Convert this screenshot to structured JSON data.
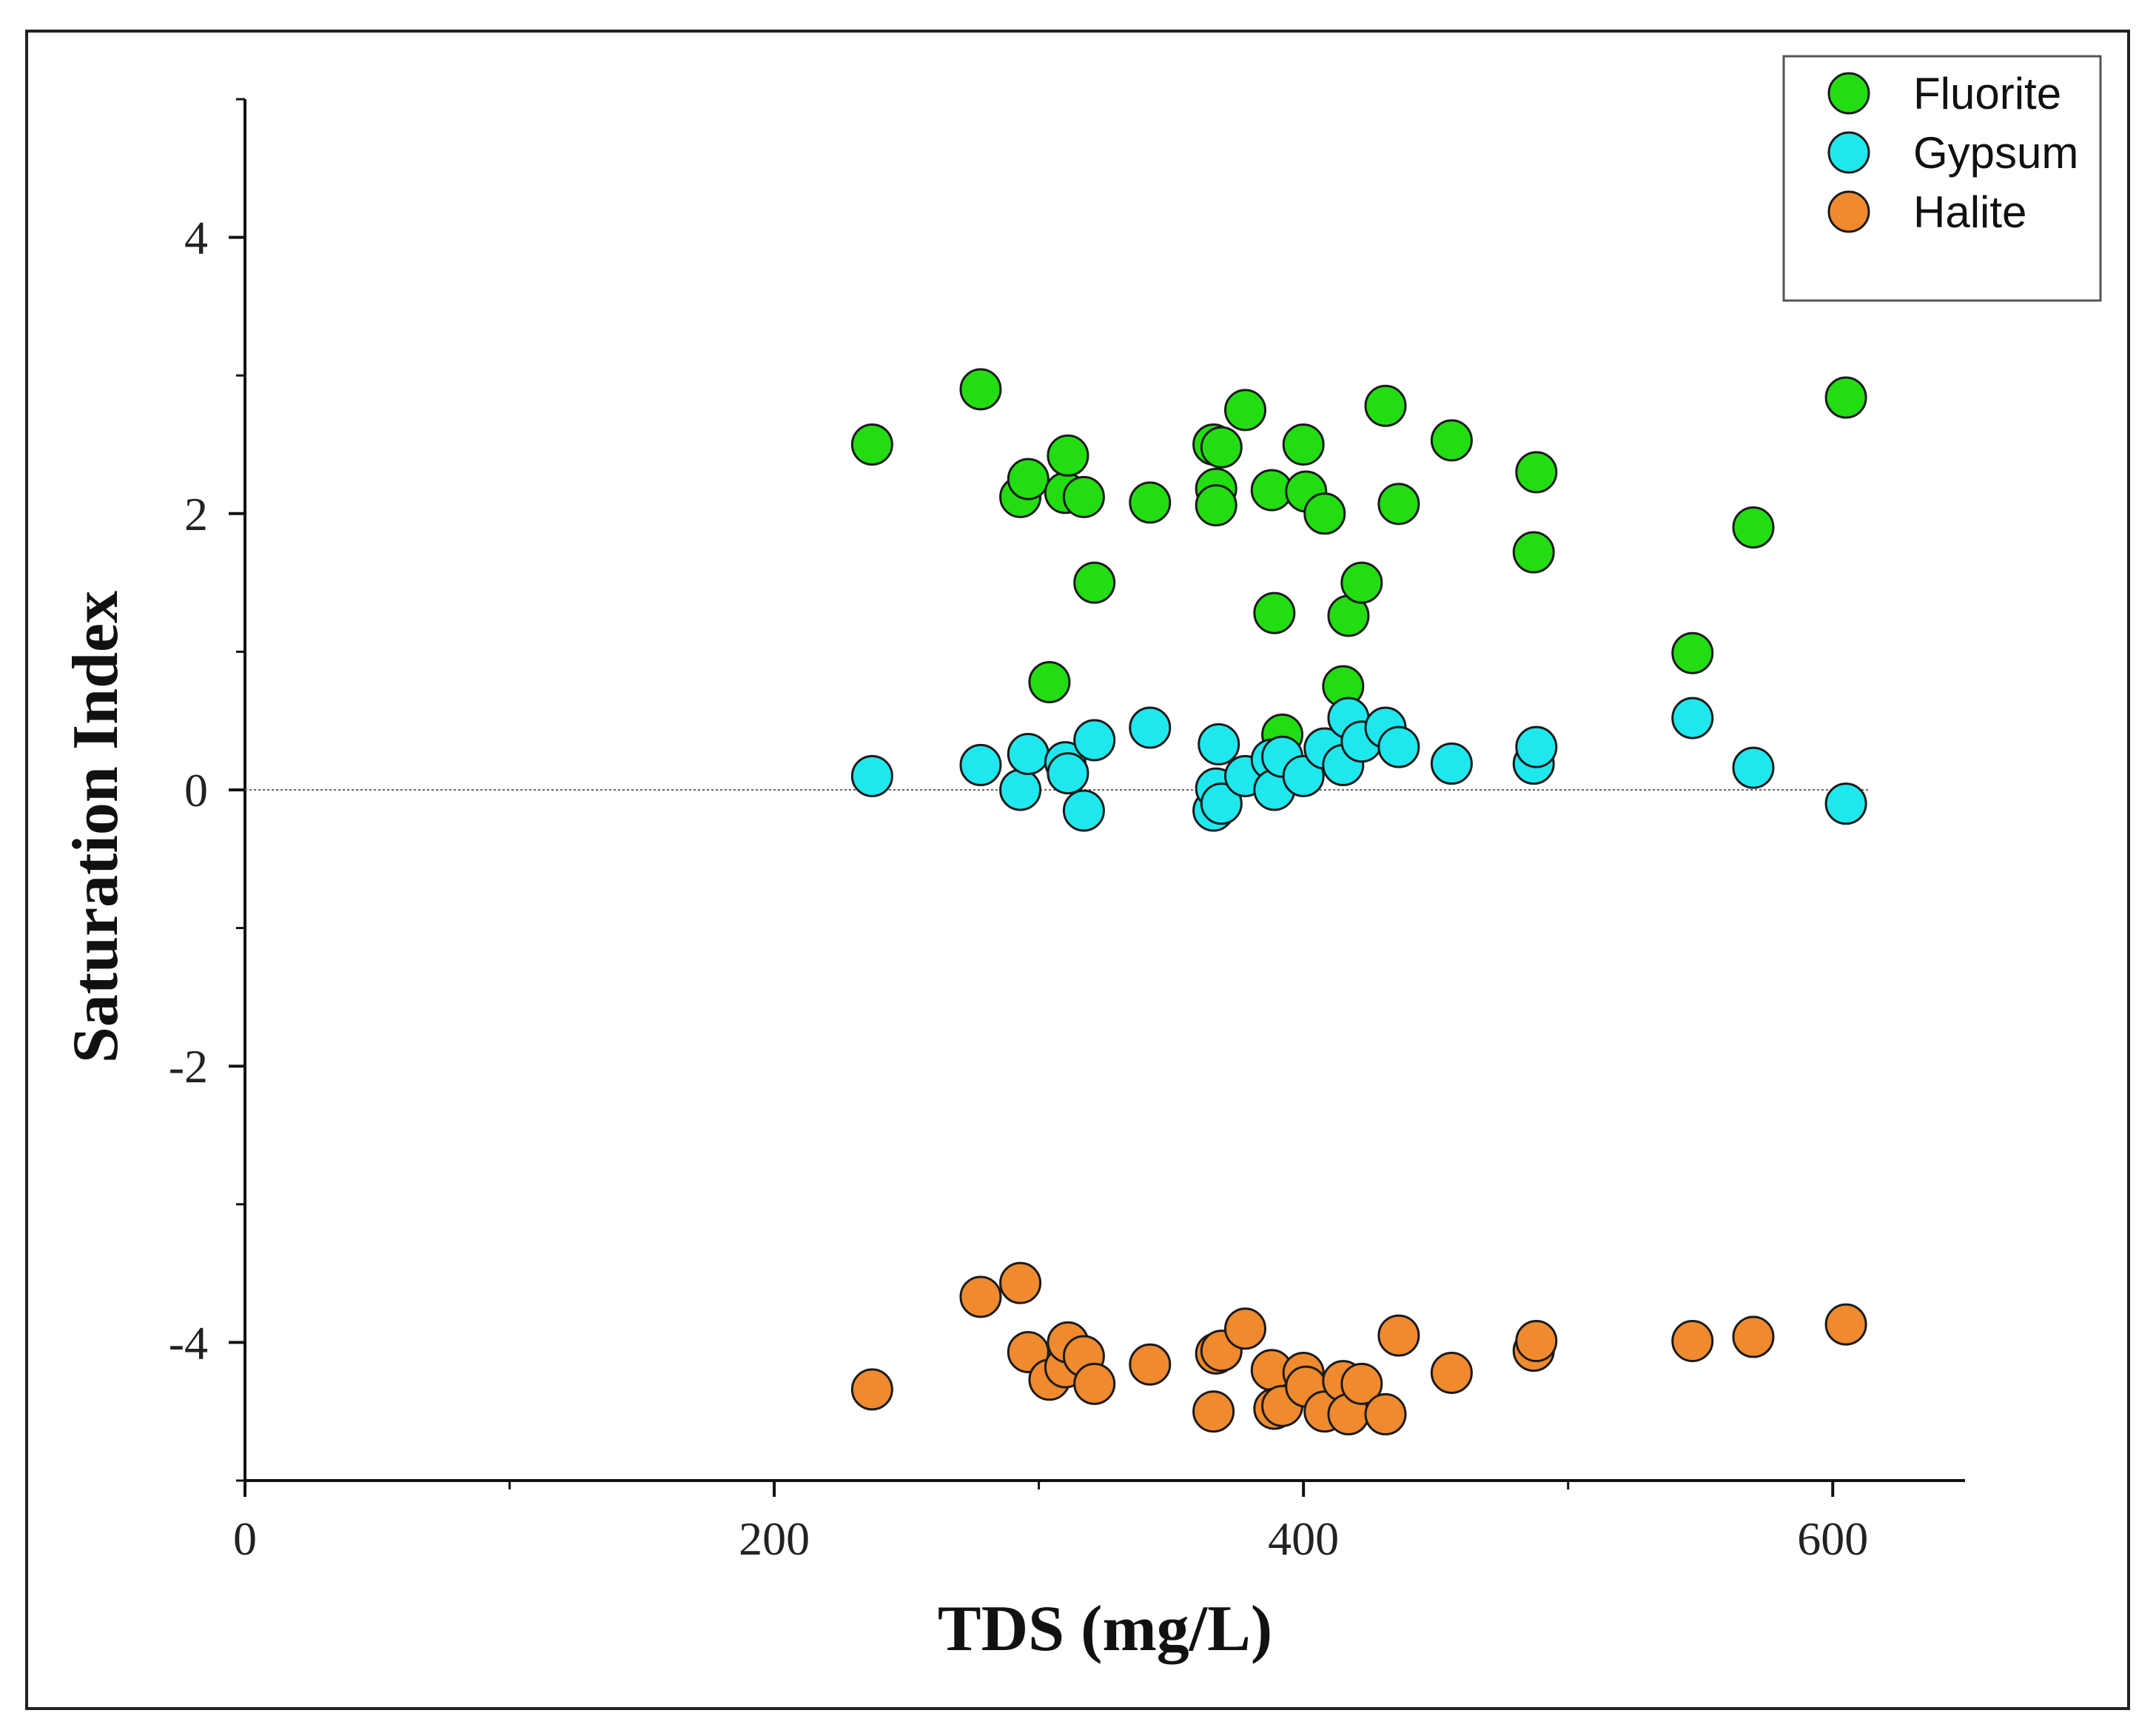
{
  "chart_data": {
    "type": "scatter",
    "title": "",
    "xlabel": "TDS (mg/L)",
    "ylabel": "Saturation Index",
    "xlim": [
      0,
      650
    ],
    "ylim": [
      -5,
      5
    ],
    "x_ticks": [
      0,
      200,
      400,
      600
    ],
    "x_minor_ticks": [
      100,
      300,
      500
    ],
    "y_ticks": [
      -4,
      -2,
      0,
      2,
      4
    ],
    "y_minor_ticks": [
      -5,
      -3,
      -1,
      1,
      3,
      5
    ],
    "x_tick_labels": [
      "0",
      "200",
      "400",
      "600"
    ],
    "y_tick_labels": [
      "-4",
      "-2",
      "0",
      "2",
      "4"
    ],
    "reference_line_y": 0,
    "grid": false,
    "legend_position": "top-right",
    "series": [
      {
        "name": "Fluorite",
        "color": "#22dd11",
        "points": [
          [
            237,
            2.5
          ],
          [
            278,
            2.9
          ],
          [
            293,
            2.12
          ],
          [
            296,
            2.25
          ],
          [
            310,
            2.15
          ],
          [
            311,
            2.42
          ],
          [
            317,
            2.12
          ],
          [
            321,
            1.5
          ],
          [
            304,
            0.78
          ],
          [
            342,
            2.08
          ],
          [
            366,
            2.5
          ],
          [
            367,
            2.18
          ],
          [
            367,
            2.06
          ],
          [
            369,
            2.48
          ],
          [
            378,
            2.75
          ],
          [
            388,
            2.17
          ],
          [
            389,
            1.28
          ],
          [
            392,
            0.4
          ],
          [
            400,
            2.5
          ],
          [
            401,
            2.16
          ],
          [
            408,
            2.0
          ],
          [
            415,
            0.75
          ],
          [
            417,
            1.26
          ],
          [
            422,
            1.5
          ],
          [
            431,
            2.78
          ],
          [
            436,
            2.07
          ],
          [
            456,
            2.53
          ],
          [
            487,
            1.72
          ],
          [
            488,
            2.3
          ],
          [
            547,
            0.99
          ],
          [
            570,
            1.9
          ],
          [
            605,
            2.84
          ]
        ]
      },
      {
        "name": "Gypsum",
        "color": "#1ee8ee",
        "points": [
          [
            237,
            0.1
          ],
          [
            278,
            0.18
          ],
          [
            293,
            0.0
          ],
          [
            296,
            0.26
          ],
          [
            310,
            0.2
          ],
          [
            311,
            0.12
          ],
          [
            317,
            -0.15
          ],
          [
            321,
            0.36
          ],
          [
            342,
            0.45
          ],
          [
            366,
            -0.15
          ],
          [
            367,
            0.01
          ],
          [
            368,
            0.33
          ],
          [
            369,
            -0.1
          ],
          [
            378,
            0.1
          ],
          [
            388,
            0.22
          ],
          [
            389,
            0.0
          ],
          [
            392,
            0.24
          ],
          [
            400,
            0.1
          ],
          [
            408,
            0.3
          ],
          [
            415,
            0.18
          ],
          [
            417,
            0.52
          ],
          [
            422,
            0.35
          ],
          [
            431,
            0.45
          ],
          [
            436,
            0.31
          ],
          [
            456,
            0.19
          ],
          [
            487,
            0.19
          ],
          [
            488,
            0.31
          ],
          [
            547,
            0.52
          ],
          [
            570,
            0.16
          ],
          [
            605,
            -0.1
          ]
        ]
      },
      {
        "name": "Halite",
        "color": "#f08a2e",
        "points": [
          [
            237,
            -4.34
          ],
          [
            278,
            -3.67
          ],
          [
            293,
            -3.57
          ],
          [
            296,
            -4.07
          ],
          [
            304,
            -4.27
          ],
          [
            310,
            -4.18
          ],
          [
            311,
            -4.0
          ],
          [
            317,
            -4.1
          ],
          [
            321,
            -4.3
          ],
          [
            342,
            -4.16
          ],
          [
            366,
            -4.5
          ],
          [
            367,
            -4.08
          ],
          [
            369,
            -4.06
          ],
          [
            378,
            -3.9
          ],
          [
            388,
            -4.2
          ],
          [
            389,
            -4.48
          ],
          [
            392,
            -4.46
          ],
          [
            400,
            -4.22
          ],
          [
            401,
            -4.32
          ],
          [
            408,
            -4.5
          ],
          [
            415,
            -4.28
          ],
          [
            417,
            -4.52
          ],
          [
            422,
            -4.3
          ],
          [
            431,
            -4.52
          ],
          [
            436,
            -3.95
          ],
          [
            456,
            -4.22
          ],
          [
            487,
            -4.06
          ],
          [
            488,
            -3.99
          ],
          [
            547,
            -3.99
          ],
          [
            570,
            -3.96
          ],
          [
            605,
            -3.87
          ]
        ]
      }
    ]
  }
}
